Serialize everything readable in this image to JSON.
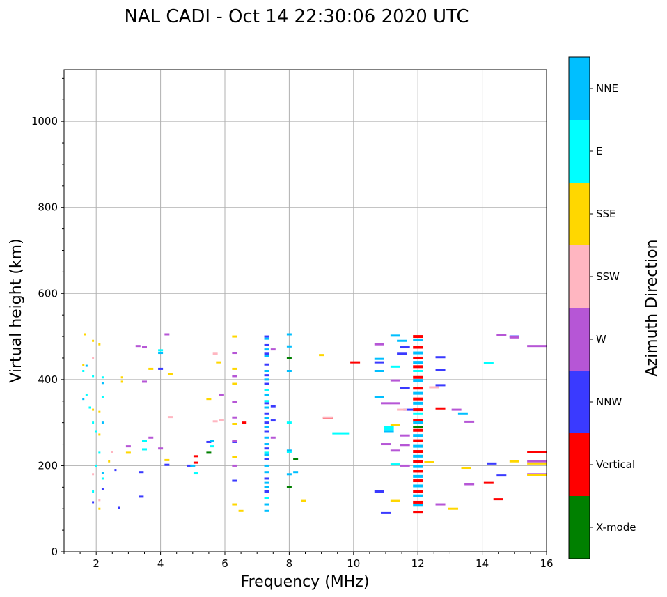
{
  "chart_data": {
    "type": "scatter",
    "title": "NAL CADI - Oct 14 22:30:06 2020 UTC",
    "xlabel": "Frequency (MHz)",
    "ylabel": "Virtual height (km)",
    "xlim": [
      1,
      16
    ],
    "ylim": [
      0,
      1120
    ],
    "x_ticks": [
      2,
      4,
      6,
      8,
      10,
      12,
      14,
      16
    ],
    "y_ticks": [
      0,
      200,
      400,
      600,
      800,
      1000
    ],
    "grid": true,
    "colorbar": {
      "label": "Azimuth Direction",
      "categories": [
        {
          "name": "X-mode",
          "color": "#008000"
        },
        {
          "name": "Vertical",
          "color": "#ff0000"
        },
        {
          "name": "NNW",
          "color": "#3a3aff"
        },
        {
          "name": "W",
          "color": "#b656d6"
        },
        {
          "name": "SSW",
          "color": "#ffb6c1"
        },
        {
          "name": "SSE",
          "color": "#ffd700"
        },
        {
          "name": "E",
          "color": "#00ffff"
        },
        {
          "name": "NNE",
          "color": "#00bfff"
        }
      ]
    },
    "series": [
      {
        "name": "X-mode",
        "points": [
          [
            8.0,
            450
          ],
          [
            8.0,
            150
          ],
          [
            8.2,
            215
          ],
          [
            5.5,
            230
          ],
          [
            12.0,
            290
          ]
        ]
      },
      {
        "name": "Vertical",
        "points": [
          [
            12.0,
            500
          ],
          [
            12.0,
            475
          ],
          [
            12.0,
            450
          ],
          [
            12.0,
            430
          ],
          [
            12.0,
            405
          ],
          [
            12.0,
            380
          ],
          [
            12.0,
            355
          ],
          [
            12.0,
            330
          ],
          [
            12.0,
            305
          ],
          [
            12.0,
            282
          ],
          [
            12.0,
            258
          ],
          [
            12.0,
            233
          ],
          [
            12.0,
            210
          ],
          [
            12.0,
            187
          ],
          [
            12.0,
            165
          ],
          [
            12.0,
            140
          ],
          [
            12.0,
            115
          ],
          [
            12.0,
            92
          ],
          [
            10.05,
            440
          ],
          [
            12.7,
            333
          ],
          [
            15.7,
            232
          ],
          [
            14.5,
            122
          ],
          [
            14.2,
            160
          ],
          [
            6.6,
            300
          ],
          [
            5.1,
            222
          ],
          [
            5.1,
            207
          ],
          [
            9.2,
            310
          ]
        ]
      },
      {
        "name": "NNW",
        "points": [
          [
            7.3,
            500
          ],
          [
            7.3,
            480
          ],
          [
            7.3,
            460
          ],
          [
            7.3,
            435
          ],
          [
            7.3,
            410
          ],
          [
            7.3,
            390
          ],
          [
            7.3,
            345
          ],
          [
            7.3,
            320
          ],
          [
            7.3,
            300
          ],
          [
            7.3,
            280
          ],
          [
            7.3,
            240
          ],
          [
            7.3,
            215
          ],
          [
            7.3,
            170
          ],
          [
            7.3,
            140
          ],
          [
            7.5,
            338
          ],
          [
            7.5,
            305
          ],
          [
            11.6,
            475
          ],
          [
            11.5,
            460
          ],
          [
            11.6,
            380
          ],
          [
            11.7,
            330
          ],
          [
            11.0,
            90
          ],
          [
            12.7,
            423
          ],
          [
            12.7,
            387
          ],
          [
            12.7,
            452
          ],
          [
            14.3,
            205
          ],
          [
            14.6,
            177
          ],
          [
            15.0,
            500
          ],
          [
            10.8,
            440
          ],
          [
            10.8,
            140
          ],
          [
            6.3,
            255
          ],
          [
            6.3,
            165
          ],
          [
            5.5,
            255
          ],
          [
            4.9,
            200
          ],
          [
            4.0,
            425
          ],
          [
            4.2,
            202
          ],
          [
            3.4,
            185
          ],
          [
            3.4,
            128
          ],
          [
            2.6,
            190
          ],
          [
            2.7,
            102
          ],
          [
            2.2,
            145
          ],
          [
            1.9,
            115
          ]
        ]
      },
      {
        "name": "W",
        "points": [
          [
            11.0,
            345
          ],
          [
            11.0,
            250
          ],
          [
            11.3,
            235
          ],
          [
            11.3,
            345
          ],
          [
            11.6,
            270
          ],
          [
            11.6,
            248
          ],
          [
            11.6,
            200
          ],
          [
            12.7,
            110
          ],
          [
            13.2,
            330
          ],
          [
            13.6,
            302
          ],
          [
            13.6,
            157
          ],
          [
            15.7,
            210
          ],
          [
            15.7,
            180
          ],
          [
            15.7,
            478
          ],
          [
            14.6,
            503
          ],
          [
            15.0,
            498
          ],
          [
            10.8,
            482
          ],
          [
            11.3,
            398
          ],
          [
            7.5,
            470
          ],
          [
            7.5,
            265
          ],
          [
            6.3,
            462
          ],
          [
            6.3,
            408
          ],
          [
            6.3,
            348
          ],
          [
            6.3,
            312
          ],
          [
            6.3,
            257
          ],
          [
            6.3,
            200
          ],
          [
            5.9,
            365
          ],
          [
            4.2,
            505
          ],
          [
            4.0,
            240
          ],
          [
            3.7,
            265
          ],
          [
            3.5,
            475
          ],
          [
            3.5,
            395
          ],
          [
            3.3,
            478
          ],
          [
            3.0,
            245
          ]
        ]
      },
      {
        "name": "SSW",
        "points": [
          [
            11.5,
            330
          ],
          [
            12.5,
            382
          ],
          [
            5.7,
            460
          ],
          [
            5.7,
            303
          ],
          [
            5.9,
            306
          ],
          [
            4.3,
            313
          ],
          [
            2.5,
            232
          ],
          [
            9.2,
            312
          ],
          [
            2.1,
            120
          ],
          [
            1.9,
            180
          ],
          [
            1.9,
            450
          ]
        ]
      },
      {
        "name": "SSE",
        "points": [
          [
            11.3,
            295
          ],
          [
            12.35,
            208
          ],
          [
            11.3,
            118
          ],
          [
            13.1,
            100
          ],
          [
            13.5,
            195
          ],
          [
            15.0,
            210
          ],
          [
            15.7,
            178
          ],
          [
            15.7,
            205
          ],
          [
            8.45,
            118
          ],
          [
            9.0,
            457
          ],
          [
            6.3,
            500
          ],
          [
            6.3,
            425
          ],
          [
            6.3,
            390
          ],
          [
            6.3,
            297
          ],
          [
            6.3,
            220
          ],
          [
            6.3,
            110
          ],
          [
            6.5,
            95
          ],
          [
            5.8,
            440
          ],
          [
            5.5,
            355
          ],
          [
            4.2,
            213
          ],
          [
            4.3,
            413
          ],
          [
            3.7,
            425
          ],
          [
            3.0,
            230
          ],
          [
            2.8,
            405
          ],
          [
            2.8,
            395
          ],
          [
            2.4,
            210
          ],
          [
            2.1,
            482
          ],
          [
            2.1,
            325
          ],
          [
            2.1,
            272
          ],
          [
            2.1,
            100
          ],
          [
            1.9,
            490
          ],
          [
            1.9,
            330
          ],
          [
            1.65,
            505
          ],
          [
            1.6,
            433
          ]
        ]
      },
      {
        "name": "E",
        "points": [
          [
            9.6,
            275
          ],
          [
            11.1,
            290
          ],
          [
            11.1,
            285
          ],
          [
            11.3,
            430
          ],
          [
            11.3,
            203
          ],
          [
            14.2,
            438
          ],
          [
            12.0,
            420
          ],
          [
            12.0,
            320
          ],
          [
            7.3,
            375
          ],
          [
            7.3,
            350
          ],
          [
            7.3,
            230
          ],
          [
            7.3,
            125
          ],
          [
            8.0,
            300
          ],
          [
            8.0,
            232
          ],
          [
            5.6,
            245
          ],
          [
            5.1,
            182
          ],
          [
            3.5,
            238
          ],
          [
            3.5,
            257
          ],
          [
            4.0,
            468
          ],
          [
            2.2,
            405
          ],
          [
            2.2,
            360
          ],
          [
            2.2,
            170
          ],
          [
            1.9,
            408
          ],
          [
            1.9,
            300
          ],
          [
            1.8,
            335
          ],
          [
            1.7,
            365
          ],
          [
            1.6,
            420
          ],
          [
            1.9,
            140
          ],
          [
            2.0,
            280
          ],
          [
            2.1,
            230
          ],
          [
            2.0,
            200
          ]
        ]
      },
      {
        "name": "NNE",
        "points": [
          [
            11.3,
            502
          ],
          [
            11.5,
            490
          ],
          [
            10.8,
            448
          ],
          [
            10.8,
            420
          ],
          [
            10.8,
            360
          ],
          [
            11.1,
            280
          ],
          [
            12.0,
            492
          ],
          [
            12.0,
            462
          ],
          [
            12.0,
            440
          ],
          [
            12.0,
            398
          ],
          [
            12.0,
            368
          ],
          [
            12.0,
            345
          ],
          [
            12.0,
            300
          ],
          [
            12.0,
            270
          ],
          [
            12.0,
            245
          ],
          [
            12.0,
            222
          ],
          [
            12.0,
            198
          ],
          [
            12.0,
            175
          ],
          [
            12.0,
            153
          ],
          [
            12.0,
            130
          ],
          [
            12.0,
            108
          ],
          [
            13.4,
            320
          ],
          [
            7.3,
            495
          ],
          [
            7.3,
            470
          ],
          [
            7.3,
            455
          ],
          [
            7.3,
            420
          ],
          [
            7.3,
            400
          ],
          [
            7.3,
            365
          ],
          [
            7.3,
            335
          ],
          [
            7.3,
            310
          ],
          [
            7.3,
            290
          ],
          [
            7.3,
            265
          ],
          [
            7.3,
            250
          ],
          [
            7.3,
            225
          ],
          [
            7.3,
            200
          ],
          [
            7.3,
            185
          ],
          [
            7.3,
            160
          ],
          [
            7.3,
            150
          ],
          [
            7.3,
            110
          ],
          [
            7.3,
            95
          ],
          [
            8.0,
            505
          ],
          [
            8.0,
            477
          ],
          [
            8.0,
            420
          ],
          [
            8.0,
            180
          ],
          [
            8.2,
            185
          ],
          [
            8.0,
            235
          ],
          [
            5.6,
            258
          ],
          [
            5.0,
            200
          ],
          [
            4.0,
            462
          ],
          [
            2.2,
            392
          ],
          [
            2.2,
            183
          ],
          [
            2.2,
            300
          ],
          [
            1.7,
            432
          ],
          [
            1.6,
            355
          ]
        ]
      }
    ]
  }
}
